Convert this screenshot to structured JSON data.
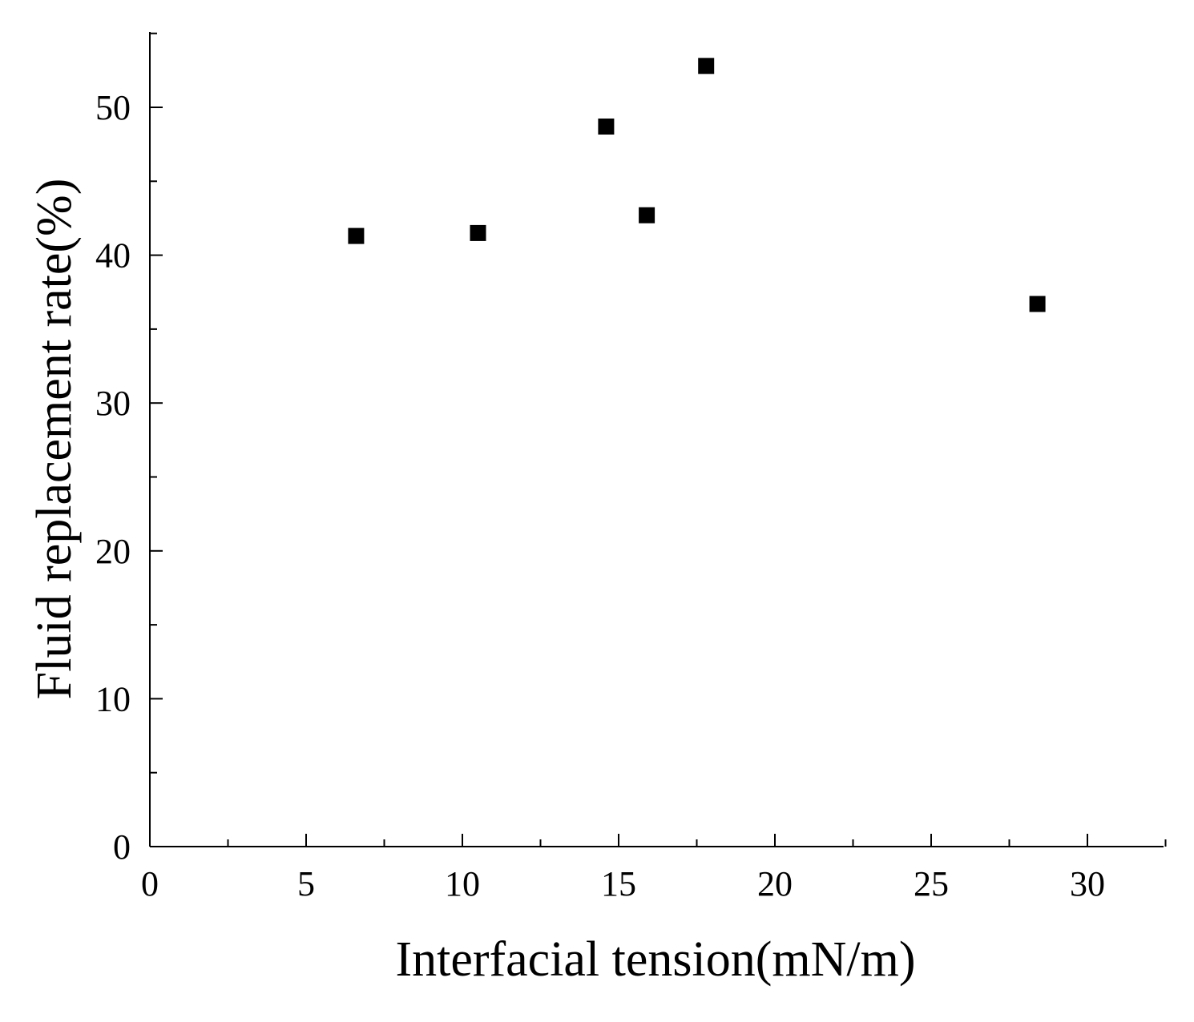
{
  "chart_data": {
    "type": "scatter",
    "xlabel": "Interfacial tension(mN/m)",
    "ylabel": "Fluid replacement rate(%)",
    "xlim": [
      0,
      32.5
    ],
    "ylim": [
      0,
      55
    ],
    "x_ticks": [
      0,
      5,
      10,
      15,
      20,
      25,
      30
    ],
    "y_ticks": [
      0,
      10,
      20,
      30,
      40,
      50
    ],
    "x_tick_labels": [
      "0",
      "5",
      "10",
      "15",
      "20",
      "25",
      "30"
    ],
    "y_tick_labels": [
      "0",
      "10",
      "20",
      "30",
      "40",
      "50"
    ],
    "x_minor_ticks": [
      2.5,
      7.5,
      12.5,
      17.5,
      22.5,
      27.5,
      32.5
    ],
    "y_minor_ticks": [
      5,
      15,
      25,
      35,
      45,
      55
    ],
    "marker": "square",
    "marker_color": "#000000",
    "grid": false,
    "series": [
      {
        "points": [
          {
            "x": 6.6,
            "y": 41.3
          },
          {
            "x": 10.5,
            "y": 41.5
          },
          {
            "x": 14.6,
            "y": 48.7
          },
          {
            "x": 15.9,
            "y": 42.7
          },
          {
            "x": 17.8,
            "y": 52.8
          },
          {
            "x": 28.4,
            "y": 36.7
          }
        ]
      }
    ]
  }
}
